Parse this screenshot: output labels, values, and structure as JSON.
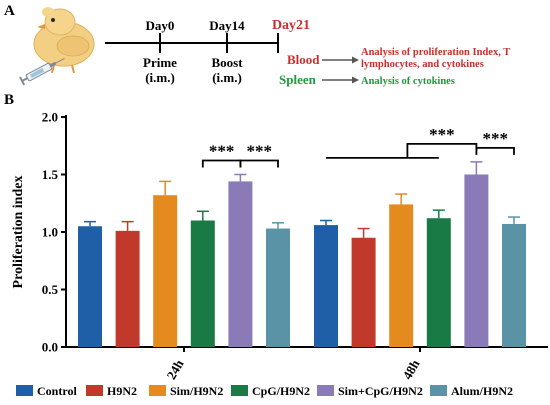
{
  "panel_a": {
    "letter": "A",
    "timeline": [
      {
        "day": "Day0",
        "event_line1": "Prime",
        "event_line2": "(i.m.)"
      },
      {
        "day": "Day14",
        "event_line1": "Boost",
        "event_line2": "(i.m.)"
      },
      {
        "day": "Day21",
        "event_line1": "",
        "event_line2": ""
      }
    ],
    "samples": [
      {
        "name": "Blood",
        "analysis_line1": "Analysis of proliferation Index, T",
        "analysis_line2": "lymphocytes, and cytokines",
        "color": "#c8302b"
      },
      {
        "name": "Spleen",
        "analysis_line1": "Analysis of cytokines",
        "analysis_line2": "",
        "color": "#1e9b3c"
      }
    ]
  },
  "panel_b": {
    "letter": "B"
  },
  "chart_data": {
    "type": "bar",
    "ylabel": "Proliferation index",
    "xlabel": "",
    "ylim": [
      0.0,
      2.0
    ],
    "yticks": [
      "0.0",
      "0.5",
      "1.0",
      "1.5",
      "2.0"
    ],
    "categories": [
      "24h",
      "48h"
    ],
    "legend_position": "bottom",
    "series": [
      {
        "name": "Control",
        "color": "#1f5fa8",
        "values": [
          1.05,
          1.06
        ],
        "errors": [
          0.04,
          0.04
        ]
      },
      {
        "name": "H9N2",
        "color": "#c0392b",
        "values": [
          1.01,
          0.95
        ],
        "errors": [
          0.08,
          0.08
        ]
      },
      {
        "name": "Sim/H9N2",
        "color": "#e58a1f",
        "values": [
          1.32,
          1.24
        ],
        "errors": [
          0.12,
          0.09
        ]
      },
      {
        "name": "CpG/H9N2",
        "color": "#1a7a45",
        "values": [
          1.1,
          1.12
        ],
        "errors": [
          0.08,
          0.07
        ]
      },
      {
        "name": "Sim+CpG/H9N2",
        "color": "#8a7ab8",
        "values": [
          1.44,
          1.5
        ],
        "errors": [
          0.06,
          0.11
        ]
      },
      {
        "name": "Alum/H9N2",
        "color": "#5a93a6",
        "values": [
          1.03,
          1.07
        ],
        "errors": [
          0.05,
          0.06
        ]
      }
    ],
    "significance": [
      {
        "group": 0,
        "type": "pair",
        "from": 3,
        "to": 4,
        "label": "***"
      },
      {
        "group": 0,
        "type": "pair",
        "from": 4,
        "to": 5,
        "label": "***"
      },
      {
        "group": 1,
        "type": "multi",
        "from": [
          0,
          1,
          2,
          3
        ],
        "to": 4,
        "label": "***"
      },
      {
        "group": 1,
        "type": "pair",
        "from": 4,
        "to": 5,
        "label": "***"
      }
    ]
  }
}
